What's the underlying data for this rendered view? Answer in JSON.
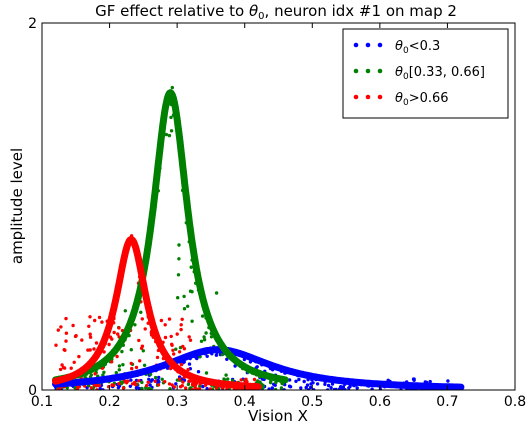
{
  "chart_data": {
    "type": "scatter",
    "title_prefix": "GF effect relative to ",
    "title_suffix": ", neuron idx #1 on map 2",
    "theta_symbol": "θ",
    "theta_sub": "0",
    "xlabel": "Vision X",
    "ylabel": "amplitude level",
    "xlim": [
      0.1,
      0.8
    ],
    "ylim": [
      0,
      2
    ],
    "x_ticks": [
      "0.1",
      "0.2",
      "0.3",
      "0.4",
      "0.5",
      "0.6",
      "0.7",
      "0.8"
    ],
    "y_ticks": [
      "0",
      "2"
    ],
    "grid": false,
    "legend_position": "top-right",
    "series": [
      {
        "legend_suffix": "<0.3",
        "color": "#0000ff",
        "fit_curve": {
          "shape": "lorentzian",
          "center": 0.36,
          "peak": 0.22,
          "width": 0.1,
          "x_range": [
            0.12,
            0.72
          ]
        },
        "scatter_x_range": [
          0.12,
          0.72
        ]
      },
      {
        "legend_suffix": "[0.33, 0.66]",
        "color": "#008000",
        "fit_curve": {
          "shape": "lorentzian",
          "center": 0.29,
          "peak": 1.62,
          "width": 0.032,
          "x_range": [
            0.12,
            0.46
          ]
        },
        "scatter_x_range": [
          0.12,
          0.46
        ]
      },
      {
        "legend_suffix": ">0.66",
        "color": "#ff0000",
        "fit_curve": {
          "shape": "lorentzian",
          "center": 0.232,
          "peak": 0.82,
          "width": 0.028,
          "x_range": [
            0.12,
            0.42
          ]
        },
        "scatter_x_range": [
          0.12,
          0.42
        ]
      }
    ]
  }
}
